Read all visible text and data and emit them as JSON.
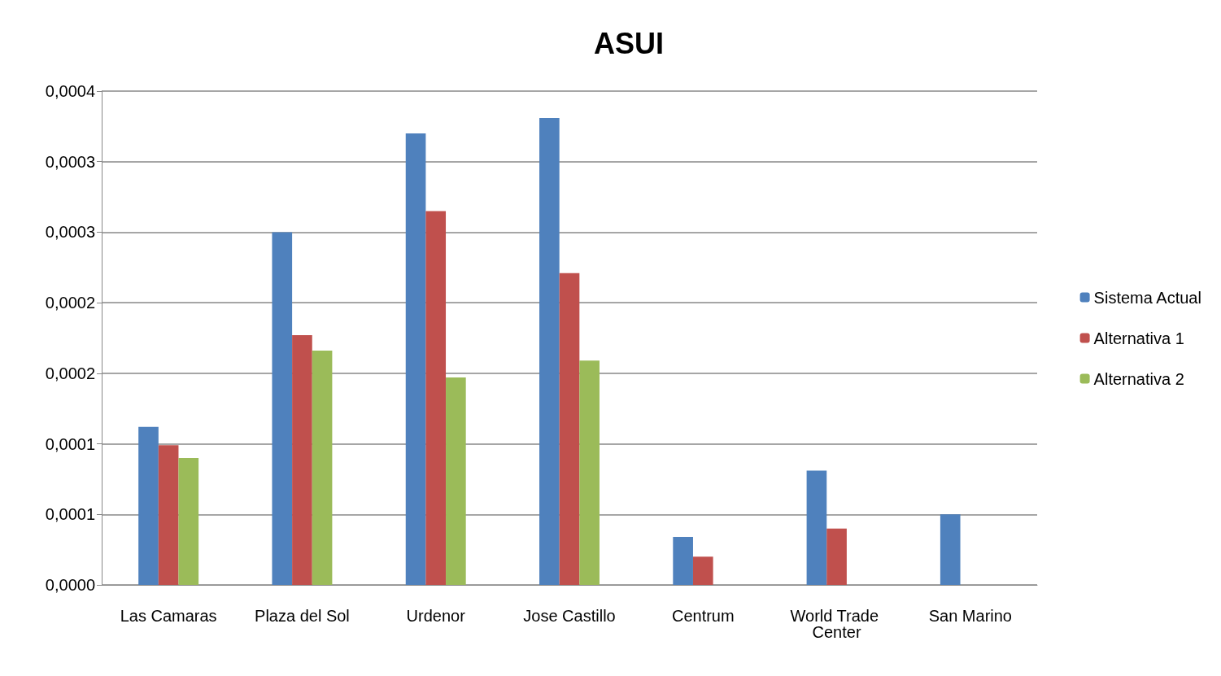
{
  "chart_data": {
    "type": "bar",
    "title": "ASUI",
    "categories": [
      "Las Camaras",
      "Plaza del Sol",
      "Urdenor",
      "Jose Castillo",
      "Centrum",
      "World Trade Center",
      "San Marino"
    ],
    "series": [
      {
        "name": "Sistema Actual",
        "color": "#4f81bd",
        "values": [
          0.000112,
          0.00025,
          0.00032,
          0.000331,
          3.4e-05,
          8.1e-05,
          5e-05
        ]
      },
      {
        "name": "Alternativa 1",
        "color": "#c0504d",
        "values": [
          9.9e-05,
          0.000177,
          0.000265,
          0.000221,
          2e-05,
          4e-05,
          null
        ]
      },
      {
        "name": "Alternativa 2",
        "color": "#9bbb59",
        "values": [
          9e-05,
          0.000166,
          0.000147,
          0.000159,
          null,
          null,
          null
        ]
      }
    ],
    "ylim": [
      0,
      0.00035
    ],
    "yticks": [
      {
        "value": 0,
        "label": "0,0000"
      },
      {
        "value": 5e-05,
        "label": "0,0001"
      },
      {
        "value": 0.0001,
        "label": "0,0001"
      },
      {
        "value": 0.00015,
        "label": "0,0002"
      },
      {
        "value": 0.0002,
        "label": "0,0002"
      },
      {
        "value": 0.00025,
        "label": "0,0003"
      },
      {
        "value": 0.0003,
        "label": "0,0003"
      },
      {
        "value": 0.00035,
        "label": "0,0004"
      }
    ],
    "grid": "y",
    "legend": "right"
  }
}
